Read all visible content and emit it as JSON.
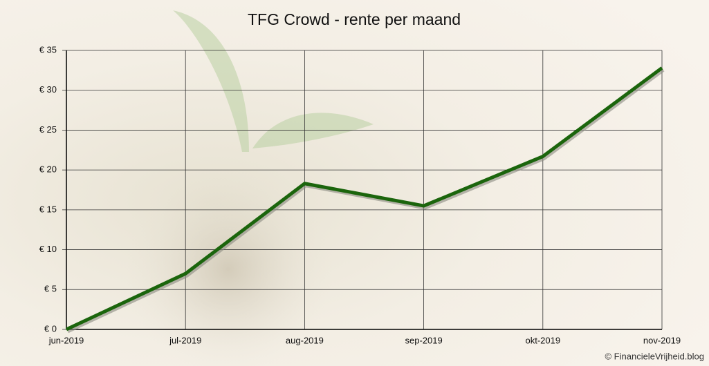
{
  "chart_data": {
    "type": "line",
    "title": "TFG Crowd - rente per maand",
    "categories": [
      "jun-2019",
      "jul-2019",
      "aug-2019",
      "sep-2019",
      "okt-2019",
      "nov-2019"
    ],
    "values": [
      0,
      7.0,
      18.3,
      15.5,
      21.7,
      32.8
    ],
    "color": "#1b650c",
    "ylim": [
      0,
      35
    ],
    "yticks": [
      {
        "value": 0,
        "label": "€ 0"
      },
      {
        "value": 5,
        "label": "€ 5"
      },
      {
        "value": 10,
        "label": "€ 10"
      },
      {
        "value": 15,
        "label": "€ 15"
      },
      {
        "value": 20,
        "label": "€ 20"
      },
      {
        "value": 25,
        "label": "€ 25"
      },
      {
        "value": 30,
        "label": "€ 30"
      },
      {
        "value": 35,
        "label": "€ 35"
      }
    ],
    "grid": true,
    "credit": "© FinancieleVrijheid.blog"
  }
}
